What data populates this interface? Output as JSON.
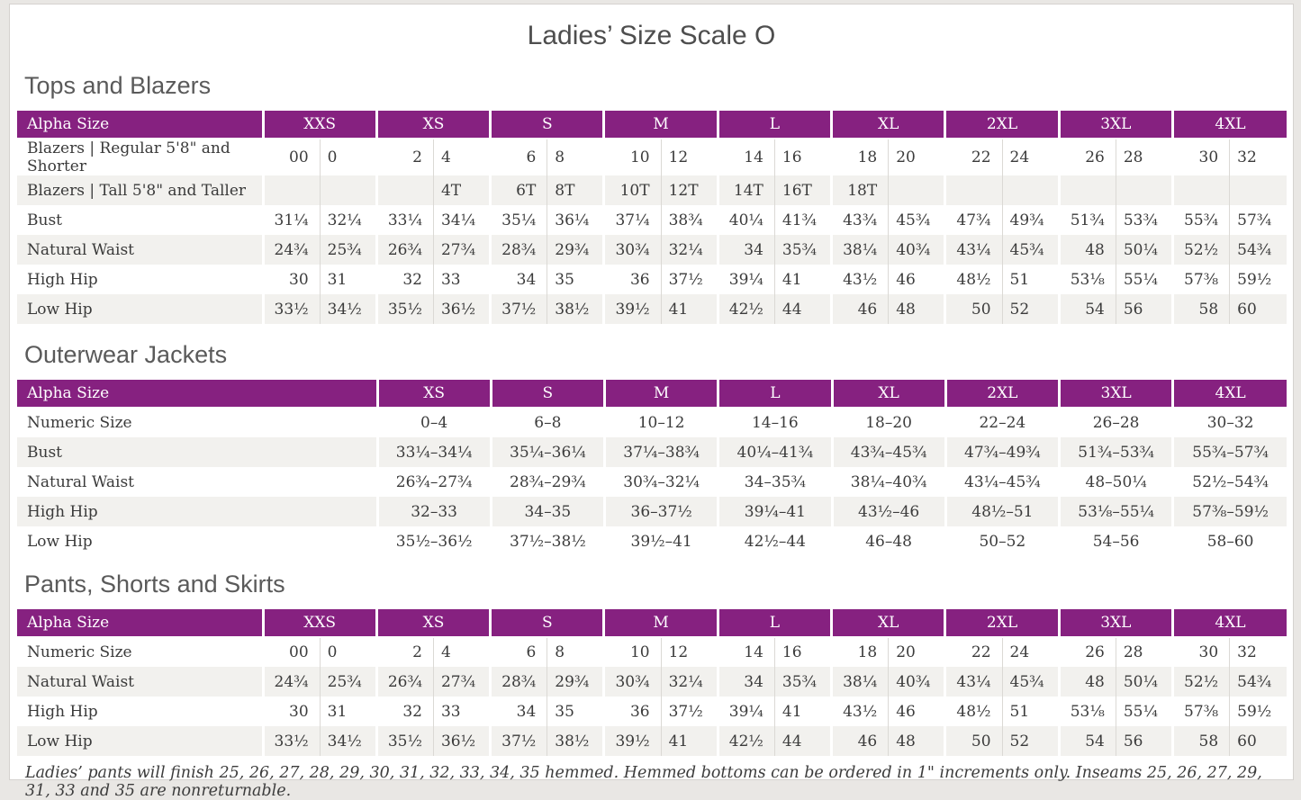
{
  "page": {
    "title": "Ladies’ Size Scale O",
    "note": "Ladies’ pants will finish 25, 26, 27, 28, 29, 30, 31, 32, 33, 34, 35 hemmed. Hemmed bottoms can be ordered in 1\" increments only. Inseams 25, 26, 27, 29, 31, 33 and 35 are nonreturnable."
  },
  "colors": {
    "header_purple": "#862180",
    "row_alt": "#f2f1ee",
    "title_gray": "#4e4e4e",
    "heading_gray": "#5a5a5a",
    "body_text": "#3b3b3b",
    "page_background": "#e9e7e4"
  },
  "tables": [
    {
      "section": "Tops and Blazers",
      "label_header": "Alpha Size",
      "sizes": [
        "XXS",
        "XS",
        "S",
        "M",
        "L",
        "XL",
        "2XL",
        "3XL",
        "4XL"
      ],
      "rows": [
        {
          "label": "Blazers | Regular 5'8\" and Shorter",
          "values": [
            [
              "00",
              "0"
            ],
            [
              "2",
              "4"
            ],
            [
              "6",
              "8"
            ],
            [
              "10",
              "12"
            ],
            [
              "14",
              "16"
            ],
            [
              "18",
              "20"
            ],
            [
              "22",
              "24"
            ],
            [
              "26",
              "28"
            ],
            [
              "30",
              "32"
            ]
          ]
        },
        {
          "label": "Blazers | Tall 5'8\" and Taller",
          "values": [
            [
              "",
              ""
            ],
            [
              "",
              "4T"
            ],
            [
              "6T",
              "8T"
            ],
            [
              "10T",
              "12T"
            ],
            [
              "14T",
              "16T"
            ],
            [
              "18T",
              ""
            ],
            [
              "",
              ""
            ],
            [
              "",
              ""
            ],
            [
              "",
              ""
            ]
          ]
        },
        {
          "label": "Bust",
          "values": [
            [
              "31¼",
              "32¼"
            ],
            [
              "33¼",
              "34¼"
            ],
            [
              "35¼",
              "36¼"
            ],
            [
              "37¼",
              "38¾"
            ],
            [
              "40¼",
              "41¾"
            ],
            [
              "43¾",
              "45¾"
            ],
            [
              "47¾",
              "49¾"
            ],
            [
              "51¾",
              "53¾"
            ],
            [
              "55¾",
              "57¾"
            ]
          ]
        },
        {
          "label": "Natural Waist",
          "values": [
            [
              "24¾",
              "25¾"
            ],
            [
              "26¾",
              "27¾"
            ],
            [
              "28¾",
              "29¾"
            ],
            [
              "30¾",
              "32¼"
            ],
            [
              "34",
              "35¾"
            ],
            [
              "38¼",
              "40¾"
            ],
            [
              "43¼",
              "45¾"
            ],
            [
              "48",
              "50¼"
            ],
            [
              "52½",
              "54¾"
            ]
          ]
        },
        {
          "label": "High Hip",
          "values": [
            [
              "30",
              "31"
            ],
            [
              "32",
              "33"
            ],
            [
              "34",
              "35"
            ],
            [
              "36",
              "37½"
            ],
            [
              "39¼",
              "41"
            ],
            [
              "43½",
              "46"
            ],
            [
              "48½",
              "51"
            ],
            [
              "53⅛",
              "55¼"
            ],
            [
              "57⅜",
              "59½"
            ]
          ]
        },
        {
          "label": "Low Hip",
          "values": [
            [
              "33½",
              "34½"
            ],
            [
              "35½",
              "36½"
            ],
            [
              "37½",
              "38½"
            ],
            [
              "39½",
              "41"
            ],
            [
              "42½",
              "44"
            ],
            [
              "46",
              "48"
            ],
            [
              "50",
              "52"
            ],
            [
              "54",
              "56"
            ],
            [
              "58",
              "60"
            ]
          ]
        }
      ]
    },
    {
      "section": "Outerwear Jackets",
      "label_header": "Alpha Size",
      "sizes": [
        "XS",
        "S",
        "M",
        "L",
        "XL",
        "2XL",
        "3XL",
        "4XL"
      ],
      "rows": [
        {
          "label": "Numeric Size",
          "values": [
            "0–4",
            "6–8",
            "10–12",
            "14–16",
            "18–20",
            "22–24",
            "26–28",
            "30–32"
          ]
        },
        {
          "label": "Bust",
          "values": [
            "33¼–34¼",
            "35¼–36¼",
            "37¼–38¾",
            "40¼–41¾",
            "43¾–45¾",
            "47¾–49¾",
            "51¾–53¾",
            "55¾–57¾"
          ]
        },
        {
          "label": "Natural Waist",
          "values": [
            "26¾–27¾",
            "28¾–29¾",
            "30¾–32¼",
            "34–35¾",
            "38¼–40¾",
            "43¼–45¾",
            "48–50¼",
            "52½–54¾"
          ]
        },
        {
          "label": "High Hip",
          "values": [
            "32–33",
            "34–35",
            "36–37½",
            "39¼–41",
            "43½–46",
            "48½–51",
            "53⅛–55¼",
            "57⅜–59½"
          ]
        },
        {
          "label": "Low Hip",
          "values": [
            "35½–36½",
            "37½–38½",
            "39½–41",
            "42½–44",
            "46–48",
            "50–52",
            "54–56",
            "58–60"
          ]
        }
      ]
    },
    {
      "section": "Pants, Shorts and Skirts",
      "label_header": "Alpha Size",
      "sizes": [
        "XXS",
        "XS",
        "S",
        "M",
        "L",
        "XL",
        "2XL",
        "3XL",
        "4XL"
      ],
      "rows": [
        {
          "label": "Numeric Size",
          "values": [
            [
              "00",
              "0"
            ],
            [
              "2",
              "4"
            ],
            [
              "6",
              "8"
            ],
            [
              "10",
              "12"
            ],
            [
              "14",
              "16"
            ],
            [
              "18",
              "20"
            ],
            [
              "22",
              "24"
            ],
            [
              "26",
              "28"
            ],
            [
              "30",
              "32"
            ]
          ]
        },
        {
          "label": "Natural Waist",
          "values": [
            [
              "24¾",
              "25¾"
            ],
            [
              "26¾",
              "27¾"
            ],
            [
              "28¾",
              "29¾"
            ],
            [
              "30¾",
              "32¼"
            ],
            [
              "34",
              "35¾"
            ],
            [
              "38¼",
              "40¾"
            ],
            [
              "43¼",
              "45¾"
            ],
            [
              "48",
              "50¼"
            ],
            [
              "52½",
              "54¾"
            ]
          ]
        },
        {
          "label": "High Hip",
          "values": [
            [
              "30",
              "31"
            ],
            [
              "32",
              "33"
            ],
            [
              "34",
              "35"
            ],
            [
              "36",
              "37½"
            ],
            [
              "39¼",
              "41"
            ],
            [
              "43½",
              "46"
            ],
            [
              "48½",
              "51"
            ],
            [
              "53⅛",
              "55¼"
            ],
            [
              "57⅜",
              "59½"
            ]
          ]
        },
        {
          "label": "Low Hip",
          "values": [
            [
              "33½",
              "34½"
            ],
            [
              "35½",
              "36½"
            ],
            [
              "37½",
              "38½"
            ],
            [
              "39½",
              "41"
            ],
            [
              "42½",
              "44"
            ],
            [
              "46",
              "48"
            ],
            [
              "50",
              "52"
            ],
            [
              "54",
              "56"
            ],
            [
              "58",
              "60"
            ]
          ]
        }
      ]
    }
  ]
}
